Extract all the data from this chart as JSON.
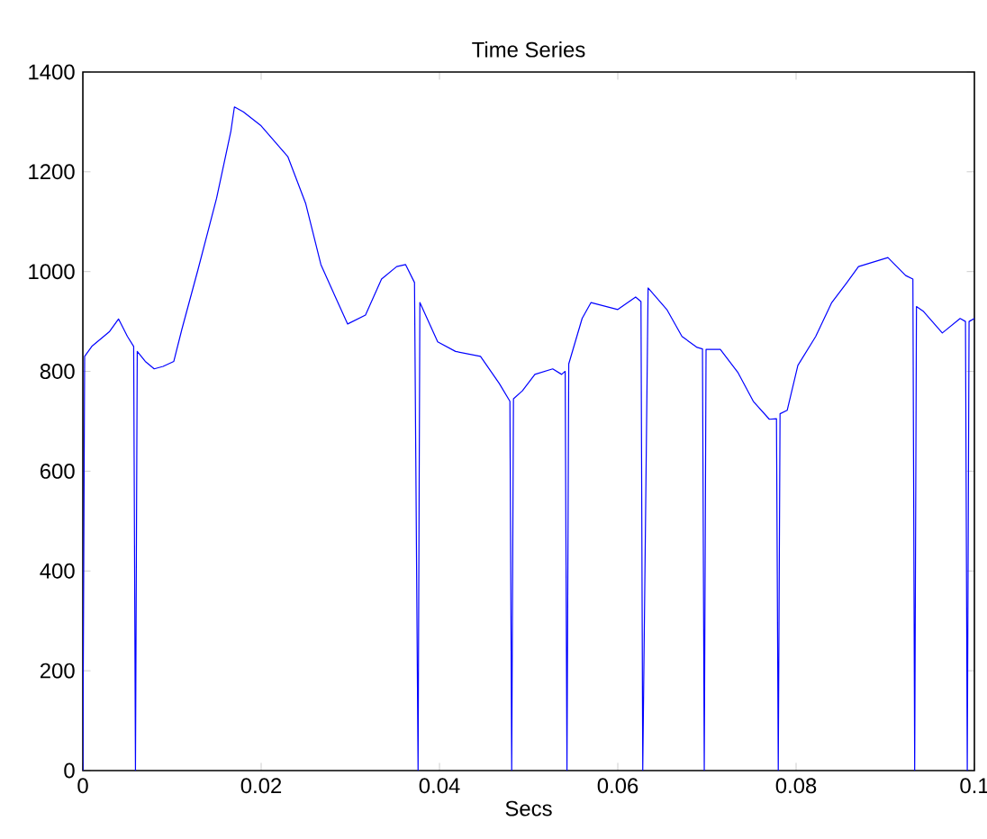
{
  "chart_data": {
    "type": "line",
    "title": "Time Series",
    "xlabel": "Secs",
    "xlim": [
      0,
      0.1
    ],
    "ylim": [
      0,
      1400
    ],
    "xticks": [
      0,
      0.02,
      0.04,
      0.06,
      0.08,
      0.1
    ],
    "yticks": [
      0,
      200,
      400,
      600,
      800,
      1000,
      1200,
      1400
    ],
    "marker": "none",
    "line_style": "solid",
    "series": [
      {
        "color": "#0000ff",
        "x": [
          0,
          0.0002,
          0.001,
          0.003,
          0.004,
          0.005,
          0.0057,
          0.0059,
          0.0061,
          0.007,
          0.008,
          0.009,
          0.0102,
          0.0111,
          0.0129,
          0.015,
          0.0166,
          0.017,
          0.018,
          0.02,
          0.023,
          0.025,
          0.0267,
          0.0285,
          0.0297,
          0.0317,
          0.0335,
          0.0352,
          0.0362,
          0.0372,
          0.0376,
          0.0378,
          0.0398,
          0.0418,
          0.0446,
          0.0467,
          0.0479,
          0.0481,
          0.0483,
          0.0493,
          0.0507,
          0.0527,
          0.0537,
          0.0541,
          0.0543,
          0.0545,
          0.056,
          0.057,
          0.06,
          0.062,
          0.0626,
          0.0628,
          0.0634,
          0.0655,
          0.0672,
          0.0689,
          0.0695,
          0.0697,
          0.0699,
          0.0715,
          0.0735,
          0.0752,
          0.077,
          0.0778,
          0.078,
          0.0782,
          0.079,
          0.0802,
          0.0822,
          0.084,
          0.0857,
          0.087,
          0.0903,
          0.0923,
          0.0931,
          0.0933,
          0.0935,
          0.0943,
          0.0964,
          0.0984,
          0.099,
          0.0992,
          0.0994,
          0.1
        ],
        "values": [
          0,
          830,
          850,
          880,
          905,
          870,
          850,
          0,
          840,
          820,
          805,
          810,
          820,
          884,
          1003,
          1147,
          1281,
          1330,
          1320,
          1292,
          1230,
          1136,
          1014,
          942,
          895,
          913,
          985,
          1010,
          1014,
          978,
          0,
          938,
          859,
          840,
          830,
          776,
          740,
          0,
          745,
          761,
          794,
          805,
          794,
          800,
          0,
          815,
          906,
          938,
          924,
          949,
          940,
          0,
          967,
          924,
          870,
          848,
          845,
          0,
          844,
          844,
          797,
          740,
          704,
          705,
          0,
          715,
          722,
          812,
          870,
          938,
          978,
          1010,
          1028,
          992,
          985,
          0,
          930,
          920,
          877,
          906,
          900,
          0,
          900,
          906
        ]
      }
    ]
  }
}
